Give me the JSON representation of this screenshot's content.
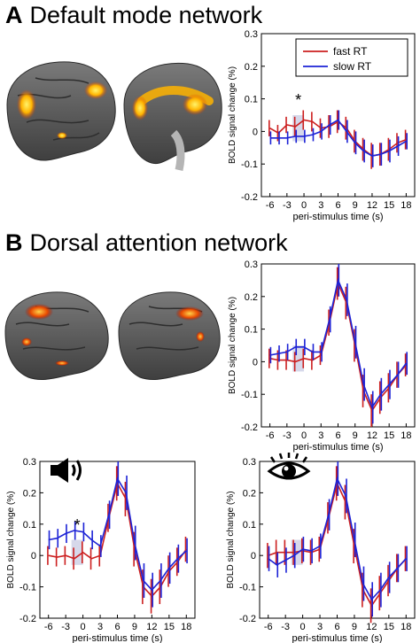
{
  "panels": {
    "a": {
      "letter": "A",
      "title": "Default mode network"
    },
    "b": {
      "letter": "B",
      "title": "Dorsal attention network"
    }
  },
  "colors": {
    "fast": "#cc1f1f",
    "slow": "#1c22d6",
    "shade": "#d6d8ea",
    "brain": "#5e5e5e",
    "activation": "#ffb400"
  },
  "icons": {
    "plot2": "speaker-icon",
    "plot3": "eye-icon"
  },
  "chart_data": [
    {
      "id": "dmn",
      "type": "line",
      "xlabel": "peri-stimulus time (s)",
      "ylabel": "BOLD signal change (%)",
      "ylim": [
        -0.2,
        0.3
      ],
      "yticks": [
        "-0.2",
        "-0.1",
        "0",
        "0.1",
        "0.2",
        "0.3"
      ],
      "xlim": [
        -7.5,
        19.5
      ],
      "xticks": [
        "-6",
        "-3",
        "0",
        "3",
        "6",
        "9",
        "12",
        "15",
        "18"
      ],
      "grid": false,
      "legend": {
        "placement": "top-right",
        "entries": [
          "fast RT",
          "slow RT"
        ]
      },
      "shaded_interval": [
        -2,
        0
      ],
      "annotation": "*",
      "annotation_x": -1,
      "x": [
        -6,
        -4.5,
        -3,
        -1.5,
        0,
        1.5,
        3,
        4.5,
        6,
        7.5,
        9,
        10.5,
        12,
        13.5,
        15,
        16.5,
        18
      ],
      "series": [
        {
          "name": "fast RT",
          "values": [
            0.01,
            -0.005,
            0.02,
            0.015,
            0.035,
            0.03,
            0.01,
            0.015,
            0.03,
            0.01,
            -0.03,
            -0.055,
            -0.075,
            -0.07,
            -0.055,
            -0.035,
            -0.025
          ],
          "errors": [
            0.025,
            0.025,
            0.025,
            0.03,
            0.03,
            0.03,
            0.03,
            0.035,
            0.035,
            0.035,
            0.035,
            0.035,
            0.04,
            0.035,
            0.035,
            0.03,
            0.03
          ]
        },
        {
          "name": "slow RT",
          "values": [
            -0.02,
            -0.02,
            -0.02,
            -0.015,
            -0.015,
            -0.01,
            0.0,
            0.02,
            0.035,
            0.0,
            -0.035,
            -0.06,
            -0.075,
            -0.07,
            -0.06,
            -0.045,
            -0.03
          ],
          "errors": [
            0.02,
            0.02,
            0.02,
            0.02,
            0.02,
            0.02,
            0.025,
            0.03,
            0.03,
            0.035,
            0.035,
            0.035,
            0.035,
            0.035,
            0.035,
            0.03,
            0.025
          ]
        }
      ]
    },
    {
      "id": "dan",
      "type": "line",
      "xlabel": "peri-stimulus time (s)",
      "ylabel": "BOLD signal change (%)",
      "ylim": [
        -0.2,
        0.3
      ],
      "yticks": [
        "-0.2",
        "-0.1",
        "0",
        "0.1",
        "0.2",
        "0.3"
      ],
      "xlim": [
        -7.5,
        19.5
      ],
      "xticks": [
        "-6",
        "-3",
        "0",
        "3",
        "6",
        "9",
        "12",
        "15",
        "18"
      ],
      "grid": false,
      "shaded_interval": [
        -2,
        0
      ],
      "x": [
        -6,
        -4.5,
        -3,
        -1.5,
        0,
        1.5,
        3,
        4.5,
        6,
        7.5,
        9,
        10.5,
        12,
        13.5,
        15,
        16.5,
        18
      ],
      "series": [
        {
          "name": "fast RT",
          "values": [
            0.01,
            0.005,
            0.005,
            0.0,
            0.01,
            0.005,
            0.02,
            0.12,
            0.24,
            0.18,
            0.05,
            -0.09,
            -0.15,
            -0.11,
            -0.08,
            -0.04,
            -0.01
          ],
          "errors": [
            0.03,
            0.03,
            0.03,
            0.03,
            0.03,
            0.03,
            0.03,
            0.04,
            0.05,
            0.05,
            0.05,
            0.05,
            0.05,
            0.05,
            0.045,
            0.04,
            0.035
          ]
        },
        {
          "name": "slow RT",
          "values": [
            0.02,
            0.025,
            0.03,
            0.045,
            0.045,
            0.03,
            0.03,
            0.13,
            0.25,
            0.19,
            0.06,
            -0.07,
            -0.14,
            -0.1,
            -0.07,
            -0.04,
            -0.005
          ],
          "errors": [
            0.025,
            0.025,
            0.025,
            0.025,
            0.025,
            0.025,
            0.03,
            0.04,
            0.05,
            0.05,
            0.05,
            0.05,
            0.05,
            0.05,
            0.045,
            0.04,
            0.035
          ]
        }
      ]
    },
    {
      "id": "dan-auditory",
      "type": "line",
      "xlabel": "peri-stimulus time (s)",
      "ylabel": "BOLD signal change (%)",
      "ylim": [
        -0.2,
        0.3
      ],
      "yticks": [
        "-0.2",
        "-0.1",
        "0",
        "0.1",
        "0.2",
        "0.3"
      ],
      "xlim": [
        -7.5,
        19.5
      ],
      "xticks": [
        "-6",
        "-3",
        "0",
        "3",
        "6",
        "9",
        "12",
        "15",
        "18"
      ],
      "grid": false,
      "shaded_interval": [
        -2,
        0
      ],
      "annotation": "*",
      "annotation_x": -1,
      "x": [
        -6,
        -4.5,
        -3,
        -1.5,
        0,
        1.5,
        3,
        4.5,
        6,
        7.5,
        9,
        10.5,
        12,
        13.5,
        15,
        16.5,
        18
      ],
      "series": [
        {
          "name": "fast RT",
          "values": [
            0.0,
            -0.005,
            0.0,
            -0.01,
            0.01,
            -0.01,
            0.0,
            0.12,
            0.23,
            0.18,
            0.02,
            -0.1,
            -0.13,
            -0.1,
            -0.05,
            -0.02,
            0.02
          ],
          "errors": [
            0.03,
            0.03,
            0.03,
            0.035,
            0.035,
            0.035,
            0.035,
            0.045,
            0.055,
            0.055,
            0.055,
            0.055,
            0.055,
            0.055,
            0.05,
            0.045,
            0.04
          ]
        },
        {
          "name": "slow RT",
          "values": [
            0.05,
            0.055,
            0.07,
            0.08,
            0.075,
            0.05,
            0.03,
            0.13,
            0.245,
            0.2,
            0.04,
            -0.08,
            -0.11,
            -0.08,
            -0.04,
            -0.01,
            0.015
          ],
          "errors": [
            0.03,
            0.03,
            0.03,
            0.03,
            0.03,
            0.03,
            0.035,
            0.045,
            0.055,
            0.055,
            0.055,
            0.055,
            0.055,
            0.055,
            0.05,
            0.045,
            0.04
          ]
        }
      ]
    },
    {
      "id": "dan-visual",
      "type": "line",
      "xlabel": "peri-stimulus time (s)",
      "ylabel": "BOLD signal change (%)",
      "ylim": [
        -0.2,
        0.3
      ],
      "yticks": [
        "-0.2",
        "-0.1",
        "0",
        "0.1",
        "0.2",
        "0.3"
      ],
      "xlim": [
        -7.5,
        19.5
      ],
      "xticks": [
        "-6",
        "-3",
        "0",
        "3",
        "6",
        "9",
        "12",
        "15",
        "18"
      ],
      "grid": false,
      "shaded_interval": [
        -2,
        0
      ],
      "x": [
        -6,
        -4.5,
        -3,
        -1.5,
        0,
        1.5,
        3,
        4.5,
        6,
        7.5,
        9,
        10.5,
        12,
        13.5,
        15,
        16.5,
        18
      ],
      "series": [
        {
          "name": "fast RT",
          "values": [
            0.0,
            0.01,
            0.01,
            0.01,
            0.015,
            0.01,
            0.02,
            0.12,
            0.23,
            0.17,
            0.03,
            -0.11,
            -0.16,
            -0.12,
            -0.08,
            -0.04,
            -0.01
          ],
          "errors": [
            0.04,
            0.04,
            0.04,
            0.04,
            0.04,
            0.04,
            0.04,
            0.05,
            0.055,
            0.055,
            0.055,
            0.055,
            0.055,
            0.055,
            0.05,
            0.045,
            0.04
          ]
        },
        {
          "name": "slow RT",
          "values": [
            -0.01,
            -0.03,
            -0.015,
            0.0,
            0.02,
            0.015,
            0.03,
            0.13,
            0.245,
            0.19,
            0.05,
            -0.09,
            -0.14,
            -0.11,
            -0.07,
            -0.04,
            -0.01
          ],
          "errors": [
            0.04,
            0.04,
            0.04,
            0.04,
            0.04,
            0.04,
            0.04,
            0.05,
            0.055,
            0.055,
            0.055,
            0.055,
            0.055,
            0.055,
            0.05,
            0.045,
            0.04
          ]
        }
      ]
    }
  ]
}
